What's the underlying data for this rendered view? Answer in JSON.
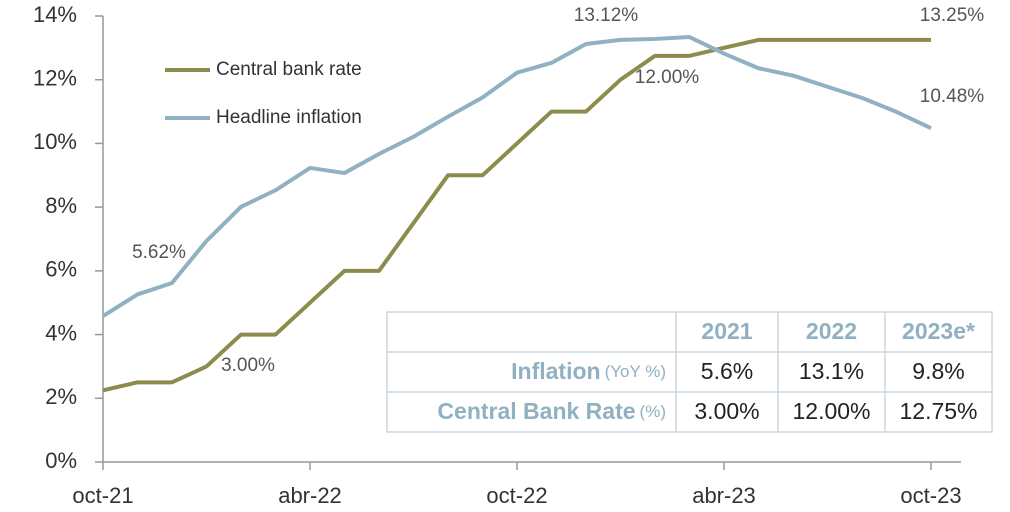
{
  "chart_data": {
    "type": "line",
    "categories": [
      "oct-21",
      null,
      null,
      null,
      null,
      null,
      "abr-22",
      null,
      null,
      null,
      null,
      null,
      "oct-22",
      null,
      null,
      null,
      null,
      null,
      "abr-23",
      null,
      null,
      null,
      null,
      null,
      "oct-23"
    ],
    "series": [
      {
        "name": "Central bank rate",
        "color": "#8c8c4e",
        "values": [
          2.25,
          2.5,
          2.5,
          3.0,
          4.0,
          4.0,
          5.0,
          6.0,
          6.0,
          7.5,
          9.0,
          9.0,
          10.0,
          11.0,
          11.0,
          12.0,
          12.75,
          12.75,
          13.0,
          13.25,
          13.25,
          13.25,
          13.25,
          13.25,
          13.25
        ]
      },
      {
        "name": "Headline inflation",
        "color": "#8fb1c1",
        "values": [
          4.58,
          5.26,
          5.62,
          6.94,
          8.01,
          8.53,
          9.23,
          9.07,
          9.67,
          10.21,
          10.84,
          11.44,
          12.22,
          12.53,
          13.12,
          13.25,
          13.28,
          13.34,
          12.82,
          12.36,
          12.13,
          11.78,
          11.43,
          10.99,
          10.48
        ]
      }
    ],
    "annotations": [
      "5.62%",
      "3.00%",
      "13.12%",
      "12.00%",
      "13.25%",
      "10.48%"
    ],
    "ylim": [
      0,
      14
    ],
    "yticks": [
      {
        "value": 0,
        "label": "0%"
      },
      {
        "value": 2,
        "label": "2%"
      },
      {
        "value": 4,
        "label": "4%"
      },
      {
        "value": 6,
        "label": "6%"
      },
      {
        "value": 8,
        "label": "8%"
      },
      {
        "value": 10,
        "label": "10%"
      },
      {
        "value": 12,
        "label": "12%"
      },
      {
        "value": 14,
        "label": "14%"
      }
    ],
    "legend": "top-left",
    "table": {
      "columns": [
        "2021",
        "2022",
        "2023e*"
      ],
      "rows": [
        {
          "label": "Inflation",
          "unit": "(YoY %)",
          "cells": [
            "5.6%",
            "13.1%",
            "9.8%"
          ]
        },
        {
          "label": "Central Bank Rate",
          "unit": "(%)",
          "cells": [
            "3.00%",
            "12.00%",
            "12.75%"
          ]
        }
      ]
    }
  }
}
